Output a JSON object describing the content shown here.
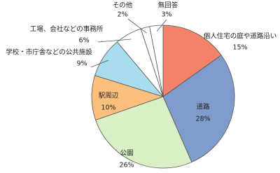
{
  "chart_data": {
    "type": "pie",
    "categories": [
      "個人住宅の庭や道路沿い",
      "道路",
      "公園",
      "駅周辺",
      "学校・市庁舎などの公共施設",
      "工場、会社などの事務所",
      "その他",
      "無回答"
    ],
    "values": [
      15,
      28,
      26,
      10,
      9,
      6,
      2,
      3
    ],
    "value_labels": [
      "15%",
      "28%",
      "26%",
      "10%",
      "9%",
      "6%",
      "2%",
      "3%"
    ],
    "colors": [
      "#f4836a",
      "#7f9ccc",
      "#d9efc6",
      "#fcc07e",
      "#a9dcec",
      "#ffffff",
      "#ffffff",
      "#ffffff"
    ]
  }
}
